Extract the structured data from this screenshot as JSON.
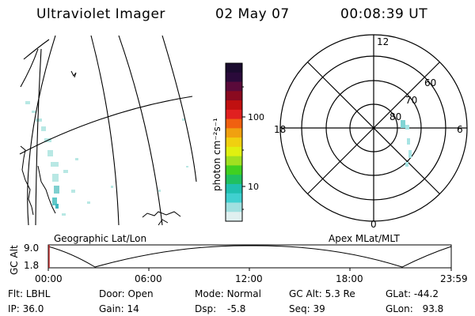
{
  "header": {
    "title": "Ultraviolet Imager",
    "date": "02 May 07",
    "time": "00:08:39 UT"
  },
  "colorbar": {
    "unit_label": "photon cm⁻²s⁻¹",
    "ticks": [
      "100",
      "10"
    ],
    "colors": [
      "#1a0b2e",
      "#2a0a3a",
      "#5a0a3a",
      "#8a0a20",
      "#c01010",
      "#e02020",
      "#f06010",
      "#f0a010",
      "#f0d010",
      "#e0f010",
      "#a0e020",
      "#40d020",
      "#20c060",
      "#20c0b0",
      "#40d0d0",
      "#a0e0e0",
      "#e0f0f0"
    ]
  },
  "polar": {
    "labels": {
      "top": "12",
      "bottom": "0",
      "left": "18",
      "right": "6"
    },
    "rings": [
      "60",
      "70",
      "80"
    ]
  },
  "map_label": "Geographic Lat/Lon",
  "polar_label": "Apex MLat/MLT",
  "timeline": {
    "ylabel": "GC Alt",
    "yticks": [
      "9.0",
      "1.8"
    ],
    "xticks": [
      "00:00",
      "06:00",
      "12:00",
      "18:00",
      "23:59"
    ]
  },
  "info": {
    "filter_label": "Flt:",
    "filter_value": "LBHL",
    "ip_label": "IP:",
    "ip_value": "36.0",
    "door_label": "Door:",
    "door_value": "Open",
    "gain_label": "Gain:",
    "gain_value": "14",
    "mode_label": "Mode:",
    "mode_value": "Normal",
    "dsp_label": "Dsp:",
    "dsp_value": "-5.8",
    "gcalt_label": "GC Alt:",
    "gcalt_value": "5.3 Re",
    "seq_label": "Seq:",
    "seq_value": "39",
    "glat_label": "GLat:",
    "glat_value": "-44.2",
    "glon_label": "GLon:",
    "glon_value": "93.8"
  }
}
